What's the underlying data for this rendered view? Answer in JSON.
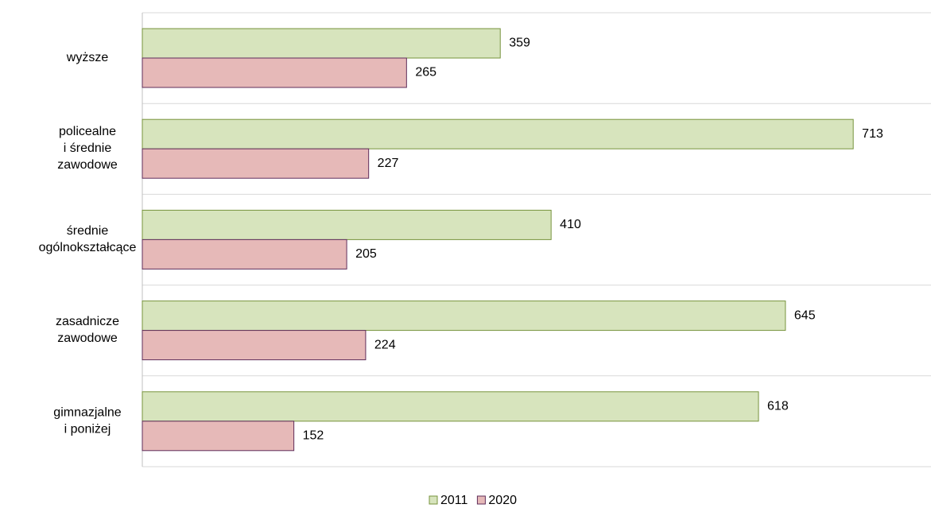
{
  "chart_data": {
    "type": "bar",
    "orientation": "horizontal",
    "categories": [
      "wyższe",
      "policealne\ni średnie\nzawodowe",
      "średnie\nogólnokształcące",
      "zasadnicze\nzawodowe",
      "gimnazjalne\ni poniżej"
    ],
    "series": [
      {
        "name": "2011",
        "color": "#d7e4bd",
        "edge": "#77933c",
        "values": [
          359,
          713,
          410,
          645,
          618
        ]
      },
      {
        "name": "2020",
        "color": "#e6b9b8",
        "edge": "#5f2d5a",
        "values": [
          265,
          227,
          205,
          224,
          152
        ]
      }
    ],
    "xlim": [
      0,
      791
    ],
    "grid": true,
    "legend": "bottom"
  }
}
